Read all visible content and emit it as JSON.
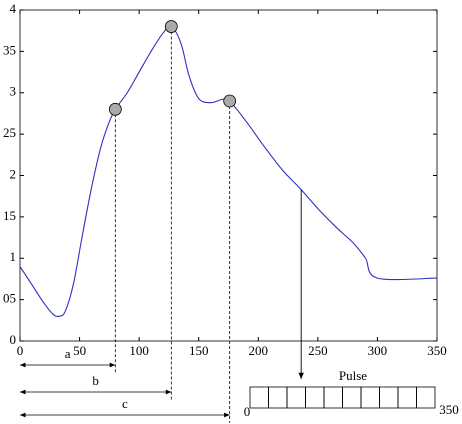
{
  "chart_data": {
    "type": "line",
    "xlim": [
      0,
      350
    ],
    "ylim": [
      0,
      4
    ],
    "xticks": [
      0,
      50,
      100,
      150,
      200,
      250,
      300,
      350
    ],
    "yticks": [
      0,
      {
        "value": 0.5,
        "label": "05"
      },
      1,
      {
        "value": 1.5,
        "label": "15"
      },
      2,
      {
        "value": 2.5,
        "label": "25"
      },
      3,
      {
        "value": 3.5,
        "label": "35"
      },
      4
    ],
    "series": [
      {
        "color": "#3030c0",
        "x": [
          0,
          10,
          20,
          28,
          33,
          38,
          45,
          52,
          60,
          68,
          75,
          80,
          90,
          100,
          110,
          120,
          127,
          135,
          142,
          150,
          160,
          170,
          176,
          190,
          205,
          220,
          236,
          250,
          265,
          280,
          290,
          300,
          350
        ],
        "values": [
          0.9,
          0.68,
          0.46,
          0.32,
          0.3,
          0.36,
          0.7,
          1.25,
          1.85,
          2.35,
          2.65,
          2.8,
          3.0,
          3.25,
          3.5,
          3.72,
          3.8,
          3.6,
          3.2,
          2.93,
          2.88,
          2.92,
          2.9,
          2.65,
          2.35,
          2.07,
          1.83,
          1.6,
          1.38,
          1.18,
          1.0,
          0.76,
          0.76
        ]
      }
    ],
    "markers": {
      "x": [
        80,
        127,
        176
      ],
      "values": [
        2.8,
        3.8,
        2.9
      ],
      "color": "#aaaaaa"
    },
    "interval_labels": [
      "a",
      "b",
      "c"
    ],
    "pulse": {
      "label": "Pulse",
      "start": 0,
      "end": 350,
      "arrow_x": 236,
      "arrow_value": 1.83
    }
  }
}
